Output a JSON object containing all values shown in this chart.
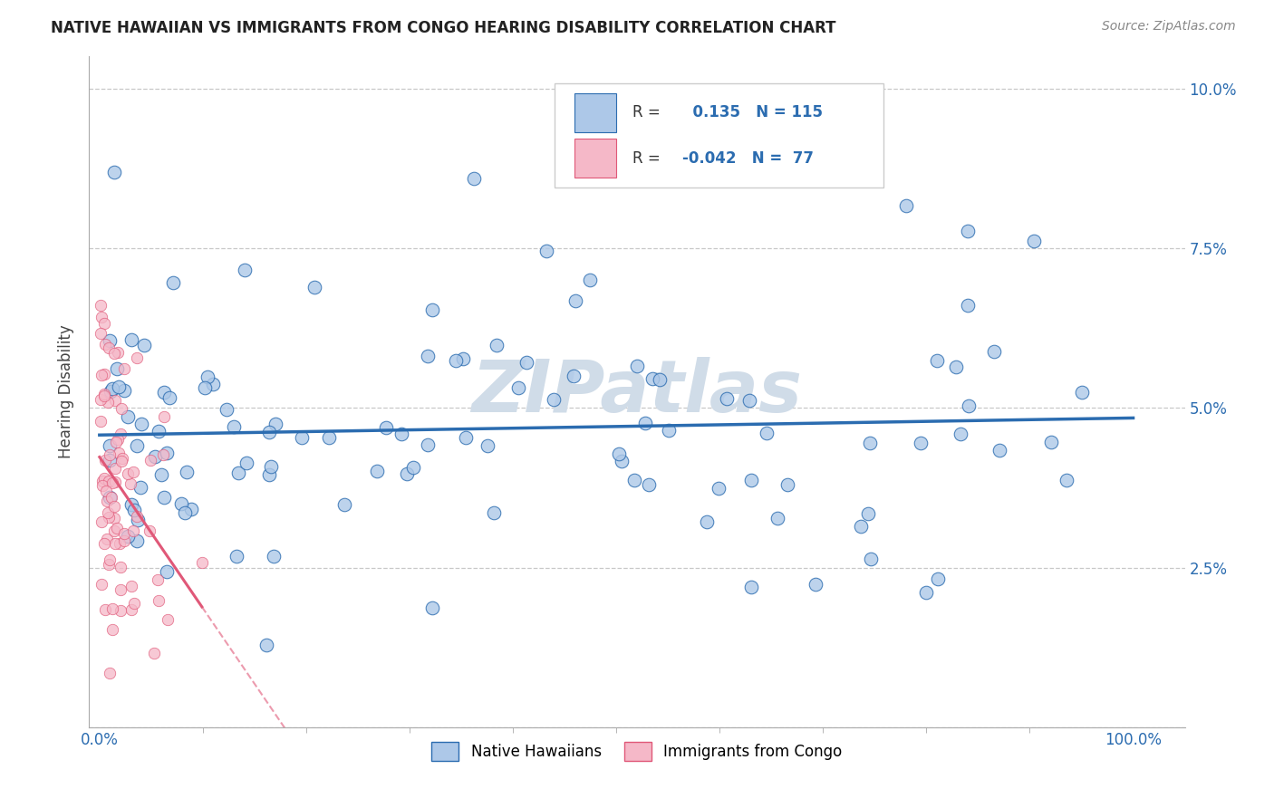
{
  "title": "NATIVE HAWAIIAN VS IMMIGRANTS FROM CONGO HEARING DISABILITY CORRELATION CHART",
  "source": "Source: ZipAtlas.com",
  "ylabel": "Hearing Disability",
  "r_hawaiian": 0.135,
  "n_hawaiian": 115,
  "r_congo": -0.042,
  "n_congo": 77,
  "color_hawaiian": "#adc8e8",
  "color_congo": "#f5b8c8",
  "line_color_hawaiian": "#2b6cb0",
  "line_color_congo": "#e05878",
  "background_color": "#ffffff",
  "grid_color": "#bbbbbb",
  "watermark_color": "#d0dce8",
  "ylim": [
    0.0,
    0.105
  ],
  "xlim": [
    -0.01,
    1.05
  ],
  "ytick_vals": [
    0.0,
    0.025,
    0.05,
    0.075,
    0.1
  ],
  "ytick_labels": [
    "",
    "2.5%",
    "5.0%",
    "7.5%",
    "10.0%"
  ],
  "title_fontsize": 12,
  "tick_fontsize": 12,
  "ylabel_fontsize": 12
}
